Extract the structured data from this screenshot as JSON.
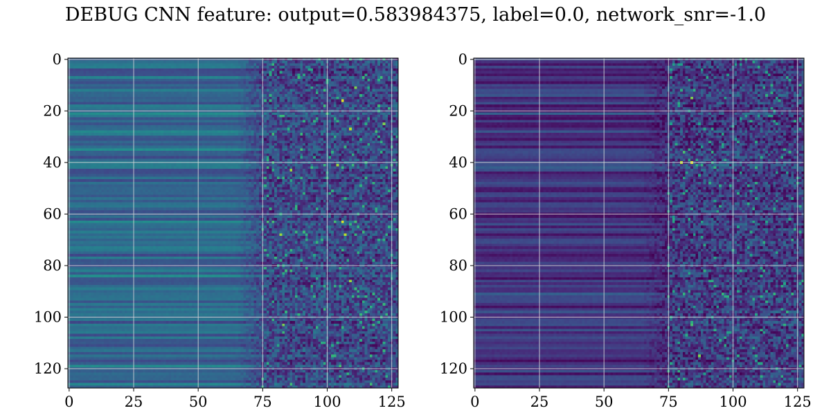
{
  "title": "DEBUG CNN feature: output=0.583984375, label=0.0, network_snr=-1.0",
  "chart_data": [
    {
      "type": "heatmap",
      "title": "",
      "xlabel": "",
      "ylabel": "",
      "colormap": "viridis",
      "rows": 128,
      "cols": 128,
      "xlim": [
        -0.5,
        127.5
      ],
      "ylim": [
        127.5,
        -0.5
      ],
      "y_inverted": true,
      "grid": true,
      "x_ticks": [
        0,
        25,
        50,
        75,
        100,
        125
      ],
      "y_ticks": [
        0,
        20,
        40,
        60,
        80,
        100,
        120
      ],
      "value_range": [
        0,
        1
      ],
      "smooth_region_end_col": 75,
      "smooth_region_level": 0.32,
      "noisy_region_level": 0.22,
      "bright_spots": [
        {
          "row": 16,
          "col": 106,
          "value": 0.95
        },
        {
          "row": 27,
          "col": 109,
          "value": 0.9
        },
        {
          "row": 41,
          "col": 104,
          "value": 0.85
        },
        {
          "row": 43,
          "col": 86,
          "value": 0.85
        },
        {
          "row": 63,
          "col": 106,
          "value": 0.95
        },
        {
          "row": 68,
          "col": 82,
          "value": 0.85
        },
        {
          "row": 68,
          "col": 107,
          "value": 0.9
        },
        {
          "row": 86,
          "col": 109,
          "value": 0.85
        },
        {
          "row": 103,
          "col": 83,
          "value": 0.8
        },
        {
          "row": 11,
          "col": 111,
          "value": 0.8
        },
        {
          "row": 25,
          "col": 122,
          "value": 0.8
        }
      ]
    },
    {
      "type": "heatmap",
      "title": "",
      "xlabel": "",
      "ylabel": "",
      "colormap": "viridis",
      "rows": 128,
      "cols": 128,
      "xlim": [
        -0.5,
        127.5
      ],
      "ylim": [
        127.5,
        -0.5
      ],
      "y_inverted": true,
      "grid": true,
      "x_ticks": [
        0,
        25,
        50,
        75,
        100,
        125
      ],
      "y_ticks": [
        0,
        20,
        40,
        60,
        80,
        100,
        120
      ],
      "value_range": [
        0,
        1
      ],
      "smooth_region_end_col": 75,
      "smooth_region_level": 0.14,
      "noisy_region_level": 0.18,
      "bright_spots": [
        {
          "row": 15,
          "col": 84,
          "value": 0.8
        },
        {
          "row": 40,
          "col": 80,
          "value": 0.9
        },
        {
          "row": 40,
          "col": 84,
          "value": 0.95
        },
        {
          "row": 36,
          "col": 81,
          "value": 0.7
        },
        {
          "row": 103,
          "col": 84,
          "value": 0.7
        },
        {
          "row": 115,
          "col": 87,
          "value": 0.8
        }
      ]
    }
  ]
}
